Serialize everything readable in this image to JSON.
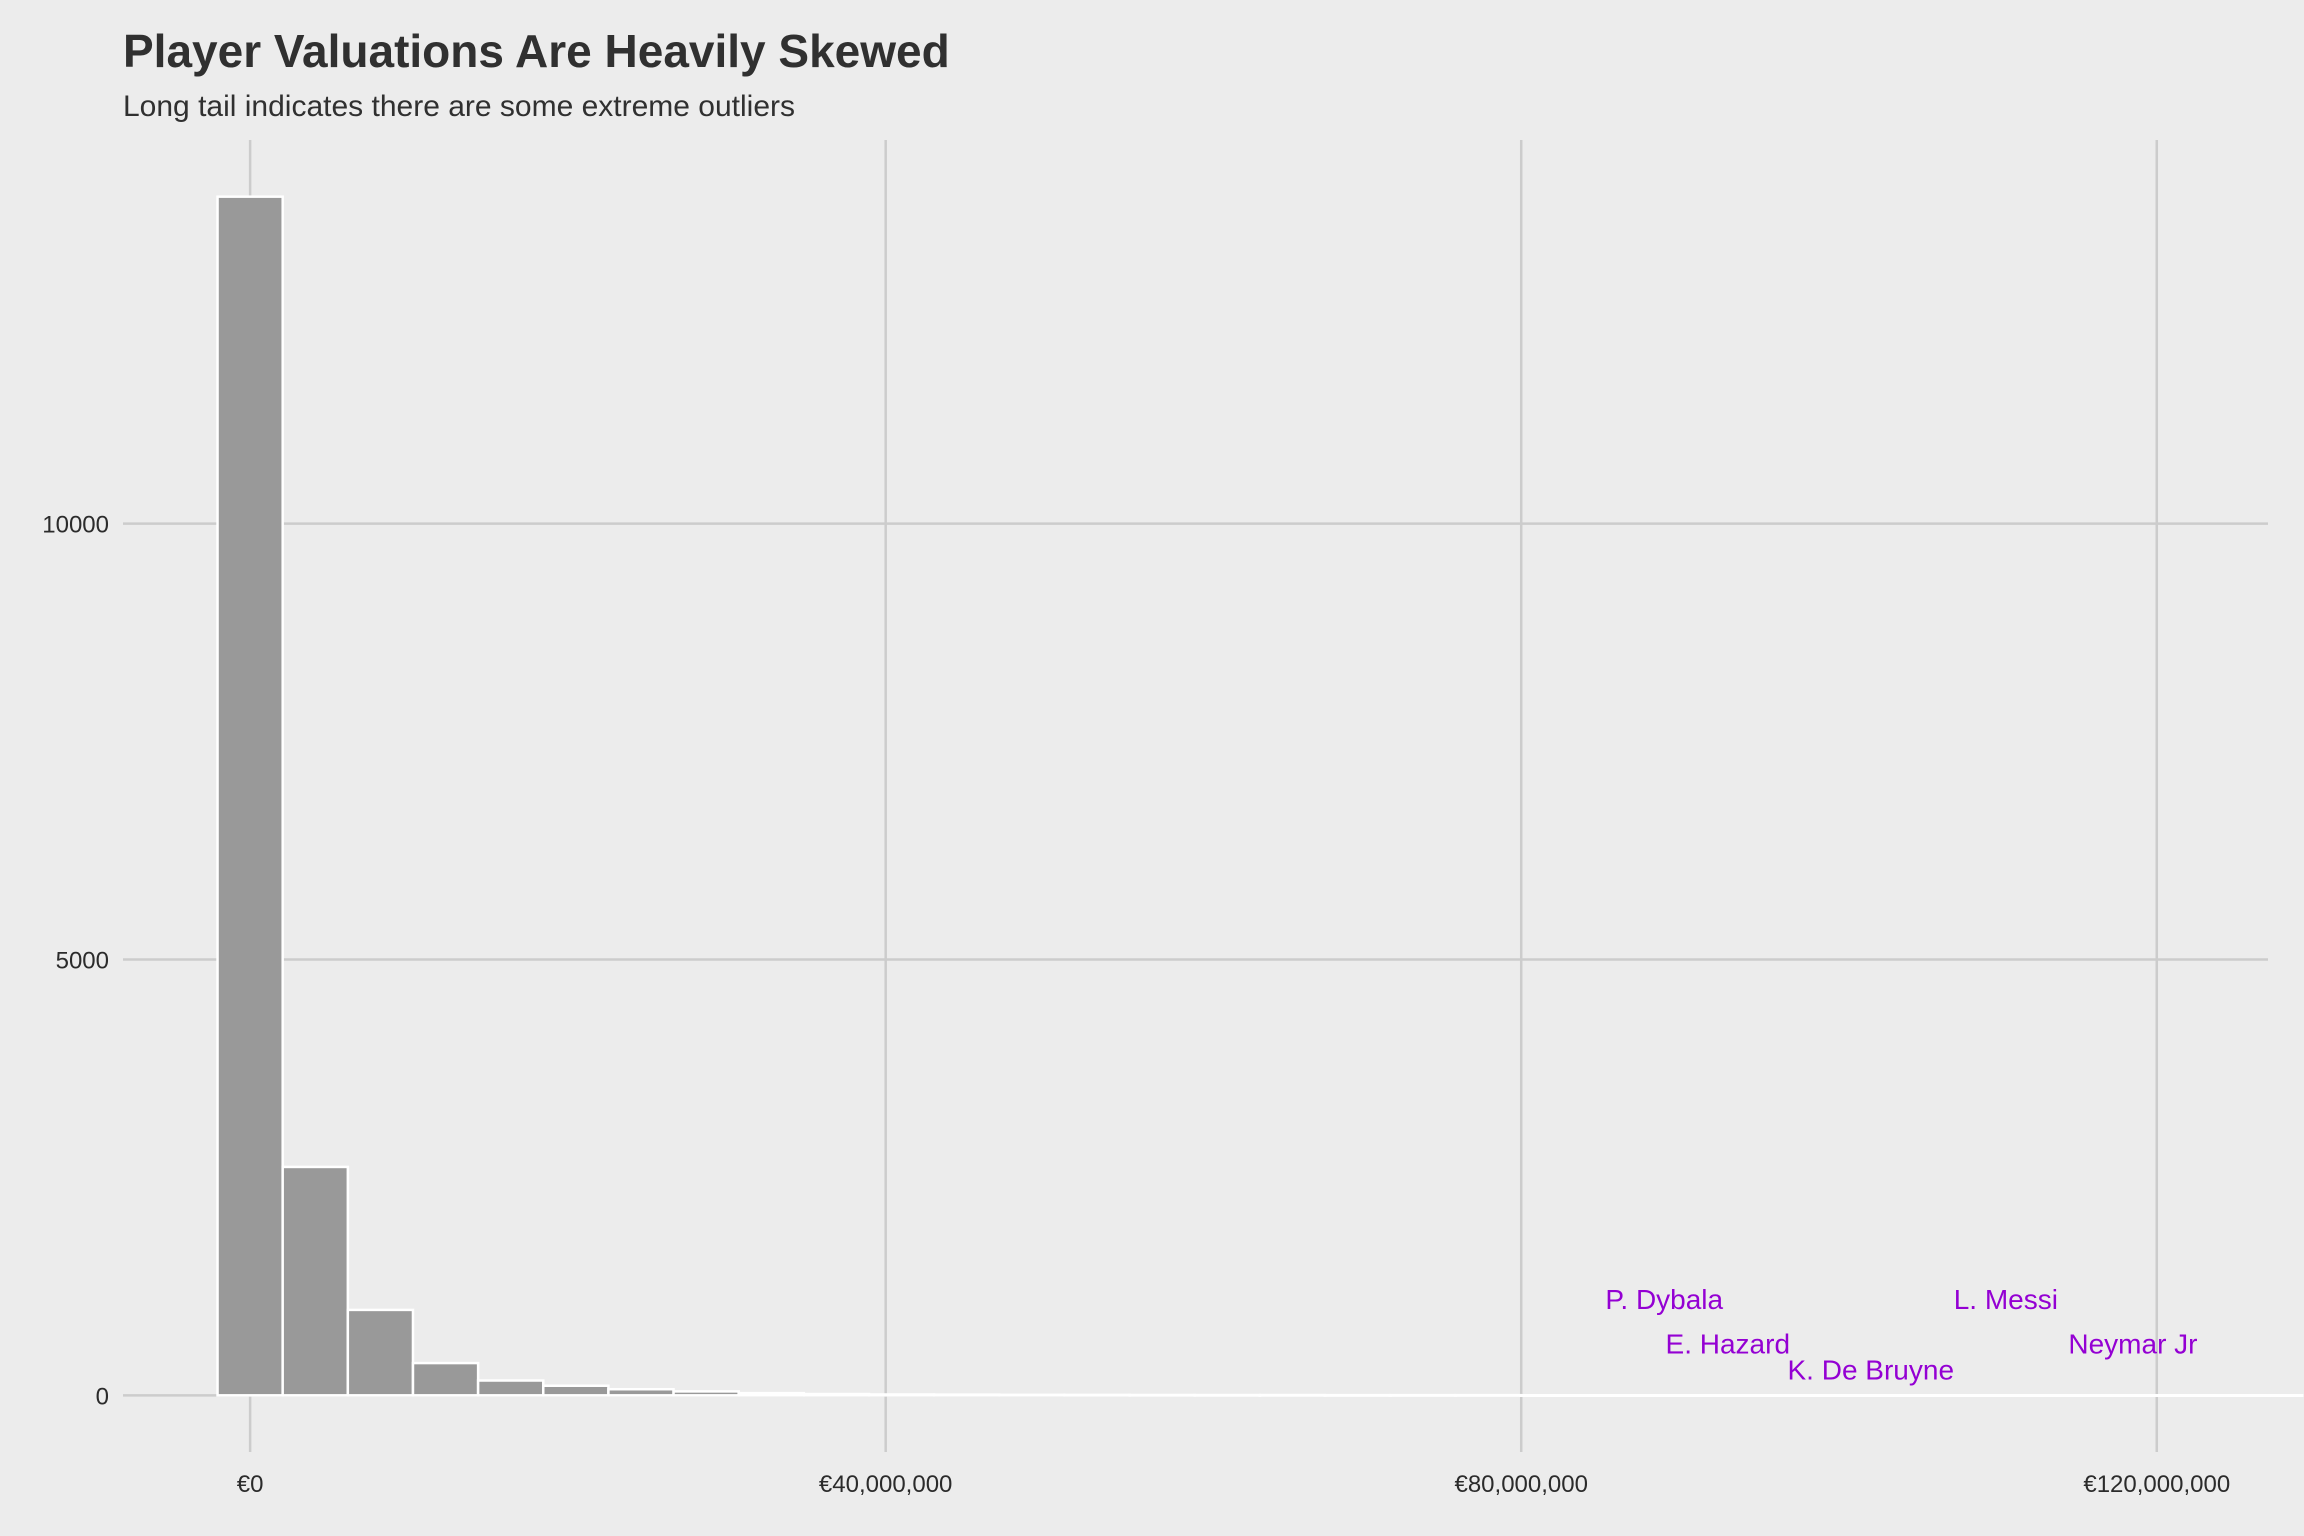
{
  "chart_data": {
    "type": "bar",
    "title": "Player Valuations Are Heavily Skewed",
    "subtitle": "Long tail indicates there are some extreme outliers",
    "xlabel": "",
    "ylabel": "",
    "x_ticks": [
      {
        "value": 0,
        "label": "€0"
      },
      {
        "value": 40000000,
        "label": "€40,000,000"
      },
      {
        "value": 80000000,
        "label": "€80,000,000"
      },
      {
        "value": 120000000,
        "label": "€120,000,000"
      }
    ],
    "y_ticks": [
      {
        "value": 0,
        "label": "0"
      },
      {
        "value": 5000,
        "label": "5000"
      },
      {
        "value": 10000,
        "label": "10000"
      }
    ],
    "xlim": [
      -8000000,
      127000000
    ],
    "ylim": [
      -650,
      14400
    ],
    "bin_width": 4100000,
    "bin_start": -2050000,
    "counts": [
      13750,
      2620,
      980,
      370,
      170,
      110,
      70,
      45,
      25,
      15,
      10,
      8,
      6,
      5,
      4,
      3,
      3,
      2,
      2,
      2,
      1,
      1,
      1,
      1,
      1,
      1,
      1,
      1,
      1,
      1,
      1,
      1
    ],
    "grid": true,
    "annotations": [
      {
        "label": "P. Dybala",
        "x": 89000000,
        "y": 990
      },
      {
        "label": "E. Hazard",
        "x": 93000000,
        "y": 480
      },
      {
        "label": "K. De Bruyne",
        "x": 102000000,
        "y": 180
      },
      {
        "label": "L. Messi",
        "x": 110500000,
        "y": 990
      },
      {
        "label": "Neymar Jr",
        "x": 118500000,
        "y": 480
      }
    ],
    "colors": {
      "background": "#ececec",
      "bar_fill": "#999999",
      "bar_outline": "#ffffff",
      "grid": "#cccccc",
      "annotation": "#9400d3",
      "text": "#303030"
    }
  }
}
